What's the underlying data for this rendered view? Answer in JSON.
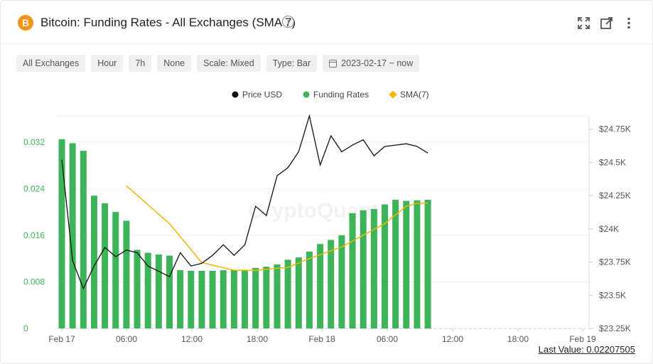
{
  "header": {
    "title": "Bitcoin: Funding Rates - All Exchanges (SMA 7)",
    "logo_glyph": "B",
    "info_glyph": "i",
    "icons": [
      "expand-icon",
      "popout-icon",
      "more-vertical-icon"
    ]
  },
  "toolbar": {
    "exchange": "All Exchanges",
    "window": "Hour",
    "range": "7h",
    "normalization": "None",
    "scale": "Scale: Mixed",
    "type": "Type: Bar",
    "date": "2023-02-17 ~ now"
  },
  "watermark": "CryptoQuant",
  "last_value": "Last Value: 0.02207505",
  "colors": {
    "price": "#111111",
    "funding": "#3db35a",
    "sma": "#f2b705",
    "left_axis_text": "#3db35a"
  },
  "chart_data": {
    "type": "bar",
    "legend": [
      "Price USD",
      "Funding Rates",
      "SMA(7)"
    ],
    "legend_position": "top-center",
    "x_labels": [
      "Feb 17",
      "06:00",
      "12:00",
      "18:00",
      "Feb 18",
      "06:00",
      "12:00",
      "18:00",
      "Feb 19"
    ],
    "left_axis": {
      "ticks": [
        "0",
        "0.008",
        "0.016",
        "0.024",
        "0.032"
      ],
      "range": [
        0,
        0.0365
      ]
    },
    "right_axis": {
      "ticks": [
        "$23.25K",
        "$23.5K",
        "$23.75K",
        "$24K",
        "$24.25K",
        "$24.5K",
        "$24.75K"
      ],
      "range": [
        23250,
        24850
      ]
    },
    "grid": true,
    "series": [
      {
        "name": "Funding Rates",
        "kind": "bar",
        "values": [
          0.0325,
          0.0318,
          0.0305,
          0.0228,
          0.0215,
          0.02,
          0.0185,
          0.0135,
          0.013,
          0.0127,
          0.0125,
          0.01,
          0.0099,
          0.0099,
          0.0099,
          0.01,
          0.01,
          0.01,
          0.0104,
          0.0106,
          0.011,
          0.0118,
          0.0122,
          0.0132,
          0.0145,
          0.0152,
          0.016,
          0.0198,
          0.0203,
          0.0205,
          0.0213,
          0.0221,
          0.0219,
          0.022,
          0.0221
        ]
      },
      {
        "name": "Price USD",
        "kind": "line",
        "values": [
          24520,
          23760,
          23550,
          23720,
          23860,
          23790,
          23840,
          23820,
          23720,
          23680,
          23640,
          23820,
          23720,
          23740,
          23800,
          23880,
          23800,
          23880,
          24170,
          24100,
          24400,
          24460,
          24580,
          24850,
          24480,
          24700,
          24580,
          24630,
          24670,
          24550,
          24620,
          24630,
          24640,
          24620,
          24570
        ]
      },
      {
        "name": "SMA(7)",
        "kind": "line",
        "values": [
          null,
          null,
          null,
          null,
          null,
          null,
          0.0245,
          null,
          null,
          null,
          0.018,
          null,
          null,
          0.0113,
          null,
          null,
          0.01,
          null,
          0.01,
          null,
          null,
          0.0105,
          null,
          0.012,
          null,
          null,
          0.014,
          null,
          0.016,
          null,
          0.018,
          null,
          0.021,
          0.0215,
          0.0215
        ]
      }
    ]
  }
}
